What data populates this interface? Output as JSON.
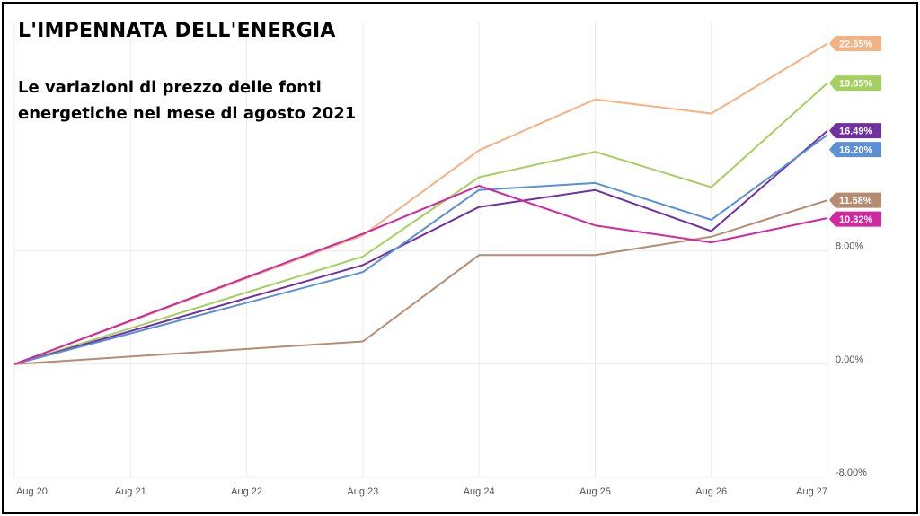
{
  "chart_data": {
    "type": "line",
    "title": "L'IMPENNATA DELL'ENERGIA",
    "subtitle": "Le variazioni di prezzo delle fonti energetiche nel mese di agosto 2021",
    "subtitle_lines": [
      "Le variazioni di prezzo delle fonti",
      "energetiche nel mese di agosto 2021"
    ],
    "categories": [
      "Aug 20",
      "Aug 21",
      "Aug 22",
      "Aug 23",
      "Aug 24",
      "Aug 25",
      "Aug 26",
      "Aug 27"
    ],
    "y_ticks": [
      -8,
      0,
      8
    ],
    "y_tick_labels": [
      "-8.00%",
      "0.00%",
      "8.00%"
    ],
    "ylim": [
      -8,
      24.2
    ],
    "grid": true,
    "legend": "none",
    "series": [
      {
        "color": "#f4b183",
        "values": [
          0,
          null,
          null,
          9.1,
          15.1,
          18.7,
          17.7,
          22.65
        ],
        "end_label": "22.65%"
      },
      {
        "color": "#a5cf5e",
        "values": [
          0,
          null,
          null,
          7.6,
          13.2,
          15.0,
          12.5,
          19.85
        ],
        "end_label": "19.85%"
      },
      {
        "color": "#7030a0",
        "values": [
          0,
          null,
          null,
          7.0,
          11.1,
          12.3,
          9.4,
          16.49
        ],
        "end_label": "16.49%"
      },
      {
        "color": "#5b8fd6",
        "values": [
          0,
          null,
          null,
          6.5,
          12.3,
          12.8,
          10.2,
          16.2
        ],
        "end_label": "16.20%"
      },
      {
        "color": "#b48c72",
        "values": [
          0,
          null,
          null,
          1.6,
          7.7,
          7.7,
          9.0,
          11.58
        ],
        "end_label": "11.58%"
      },
      {
        "color": "#d0289e",
        "values": [
          0,
          null,
          null,
          9.2,
          12.6,
          9.8,
          8.6,
          10.32
        ],
        "end_label": "10.32%"
      }
    ]
  }
}
